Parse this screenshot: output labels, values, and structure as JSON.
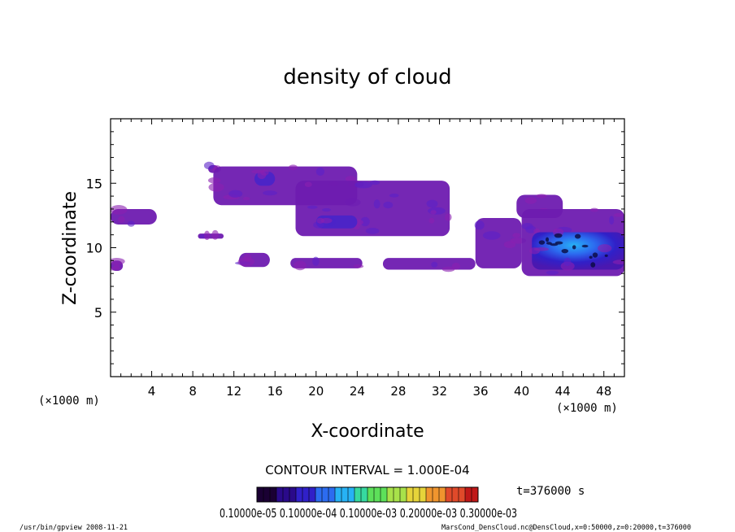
{
  "figure": {
    "title": "density of cloud",
    "xlabel": "X-coordinate",
    "ylabel": "Z-coordinate",
    "x_unit": "(×1000 m)",
    "y_unit": "(×1000 m)",
    "contour_interval": "CONTOUR INTERVAL = 1.000E-04",
    "time_label": "t=376000 s",
    "colorbar_labels": "0.10000e-05 0.10000e-04 0.10000e-03 0.20000e-03 0.30000e-03",
    "footer_left": "/usr/bin/gpview   2008-11-21",
    "footer_right": "MarsCond_DensCloud.nc@DensCloud,x=0:50000,z=0:20000,t=376000"
  },
  "chart_data": {
    "type": "heatmap",
    "title": "density of cloud",
    "xlabel": "X-coordinate",
    "ylabel": "Z-coordinate",
    "xlim": [
      0,
      50
    ],
    "ylim": [
      0,
      20
    ],
    "x_ticks": [
      4,
      8,
      12,
      16,
      20,
      24,
      28,
      32,
      36,
      40,
      44,
      48
    ],
    "y_ticks": [
      5,
      10,
      15
    ],
    "colormap": [
      "#1a0033",
      "#2a0a8a",
      "#3020c8",
      "#2c6cf0",
      "#27b2f5",
      "#36d9a0",
      "#5de05a",
      "#a8e24a",
      "#e6d43a",
      "#f0952e",
      "#e04a2a",
      "#c01818"
    ],
    "cloud_regions": [
      {
        "x": [
          0.0,
          1.2
        ],
        "z": [
          8.2,
          9.0
        ],
        "level": "low"
      },
      {
        "x": [
          0.0,
          4.5
        ],
        "z": [
          11.8,
          13.0
        ],
        "level": "low"
      },
      {
        "x": [
          8.5,
          11.0
        ],
        "z": [
          10.7,
          11.1
        ],
        "level": "low"
      },
      {
        "x": [
          9.5,
          10.5
        ],
        "z": [
          15.8,
          16.4
        ],
        "level": "low"
      },
      {
        "x": [
          10.0,
          24.0
        ],
        "z": [
          13.3,
          16.3
        ],
        "level": "low"
      },
      {
        "x": [
          14.0,
          16.0
        ],
        "z": [
          14.8,
          15.9
        ],
        "level": "medium"
      },
      {
        "x": [
          18.0,
          33.0
        ],
        "z": [
          10.9,
          15.2
        ],
        "level": "low"
      },
      {
        "x": [
          20.0,
          24.0
        ],
        "z": [
          11.5,
          12.5
        ],
        "level": "medium"
      },
      {
        "x": [
          12.5,
          15.5
        ],
        "z": [
          8.5,
          9.6
        ],
        "level": "low"
      },
      {
        "x": [
          17.5,
          24.5
        ],
        "z": [
          8.4,
          9.2
        ],
        "level": "low"
      },
      {
        "x": [
          26.5,
          35.5
        ],
        "z": [
          8.3,
          9.2
        ],
        "level": "low"
      },
      {
        "x": [
          35.5,
          40.0
        ],
        "z": [
          8.4,
          12.3
        ],
        "level": "low"
      },
      {
        "x": [
          39.5,
          44.0
        ],
        "z": [
          12.3,
          14.1
        ],
        "level": "low"
      },
      {
        "x": [
          40.0,
          50.0
        ],
        "z": [
          7.8,
          13.0
        ],
        "level": "low"
      },
      {
        "x": [
          41.0,
          50.0
        ],
        "z": [
          8.3,
          11.2
        ],
        "level": "high"
      }
    ]
  }
}
